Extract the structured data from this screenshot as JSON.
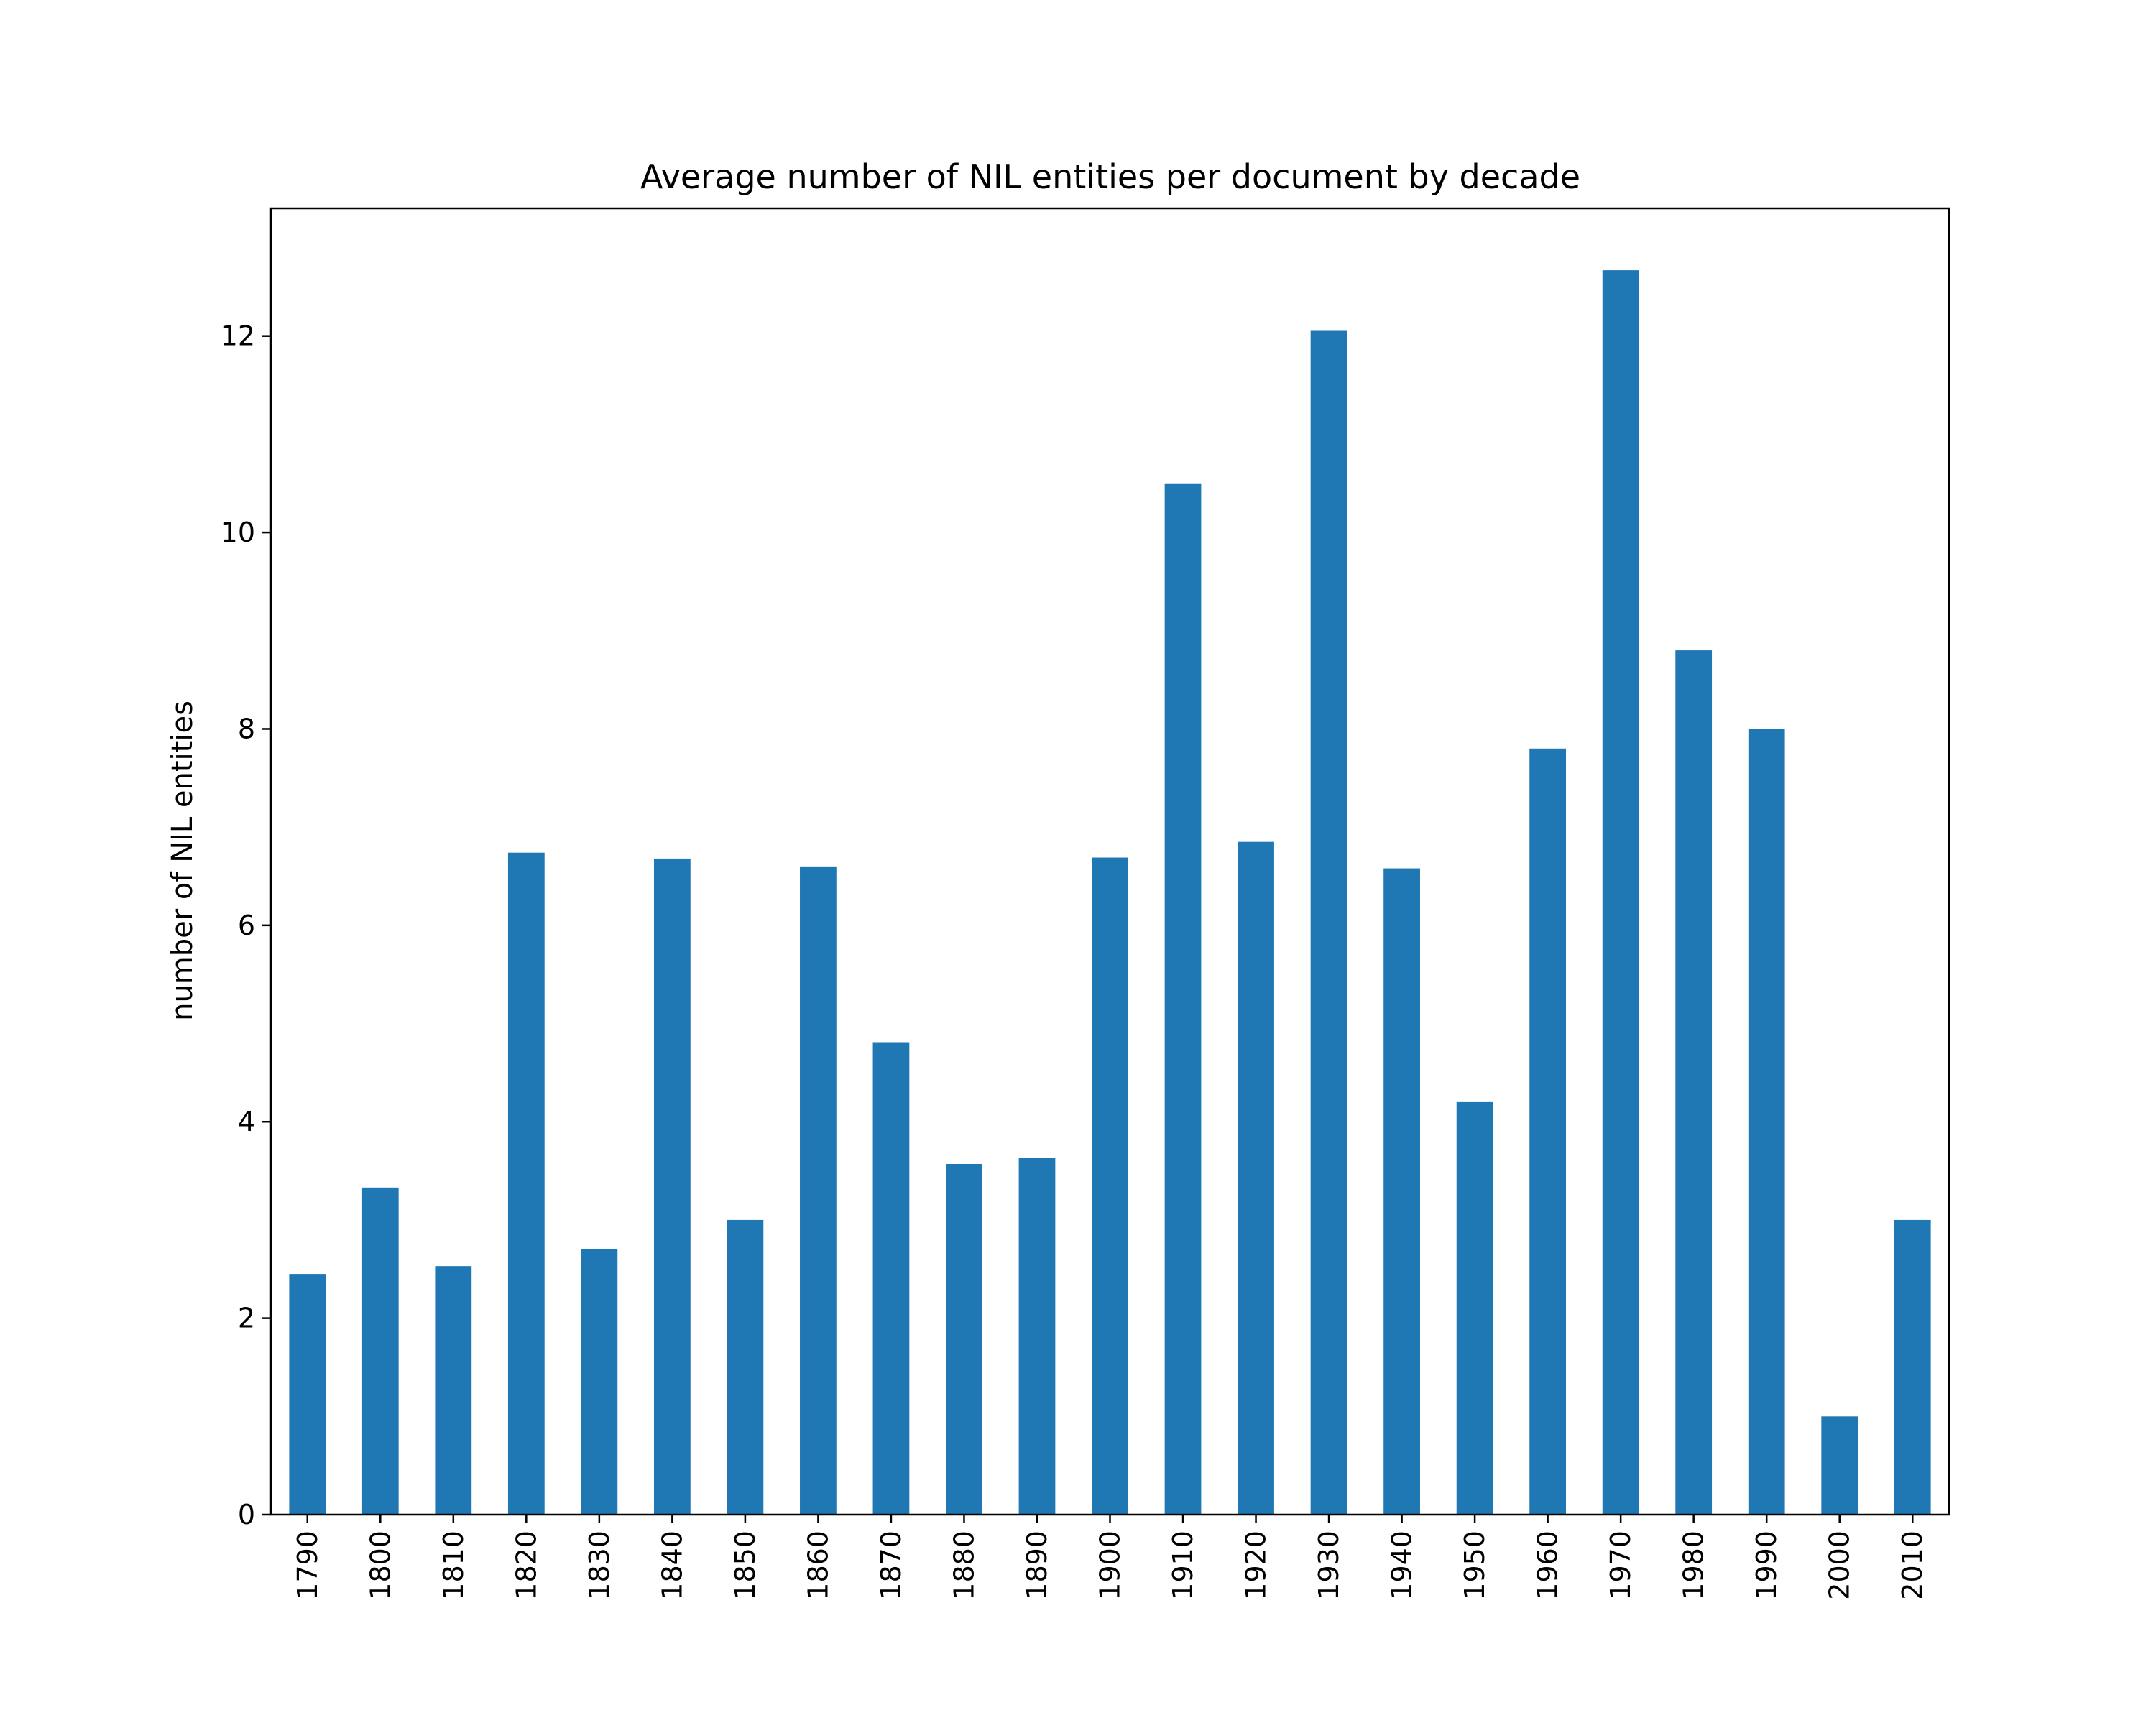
{
  "chart_data": {
    "type": "bar",
    "title": "Average number of NIL entities per document by decade",
    "xlabel": "",
    "ylabel": "number of NIL entities",
    "categories": [
      "1790",
      "1800",
      "1810",
      "1820",
      "1830",
      "1840",
      "1850",
      "1860",
      "1870",
      "1880",
      "1890",
      "1900",
      "1910",
      "1920",
      "1930",
      "1940",
      "1950",
      "1960",
      "1970",
      "1980",
      "1990",
      "2000",
      "2010"
    ],
    "values": [
      2.45,
      3.33,
      2.53,
      6.74,
      2.7,
      6.68,
      3.0,
      6.6,
      4.81,
      3.57,
      3.63,
      6.69,
      10.5,
      6.85,
      12.06,
      6.58,
      4.2,
      7.8,
      12.67,
      8.8,
      8.0,
      1.0,
      3.0
    ],
    "yticks": [
      0,
      2,
      4,
      6,
      8,
      10,
      12
    ],
    "ylim": [
      0,
      13.3
    ],
    "bar_color": "#1f77b4",
    "grid": false,
    "x_tick_rotation": "vertical"
  }
}
